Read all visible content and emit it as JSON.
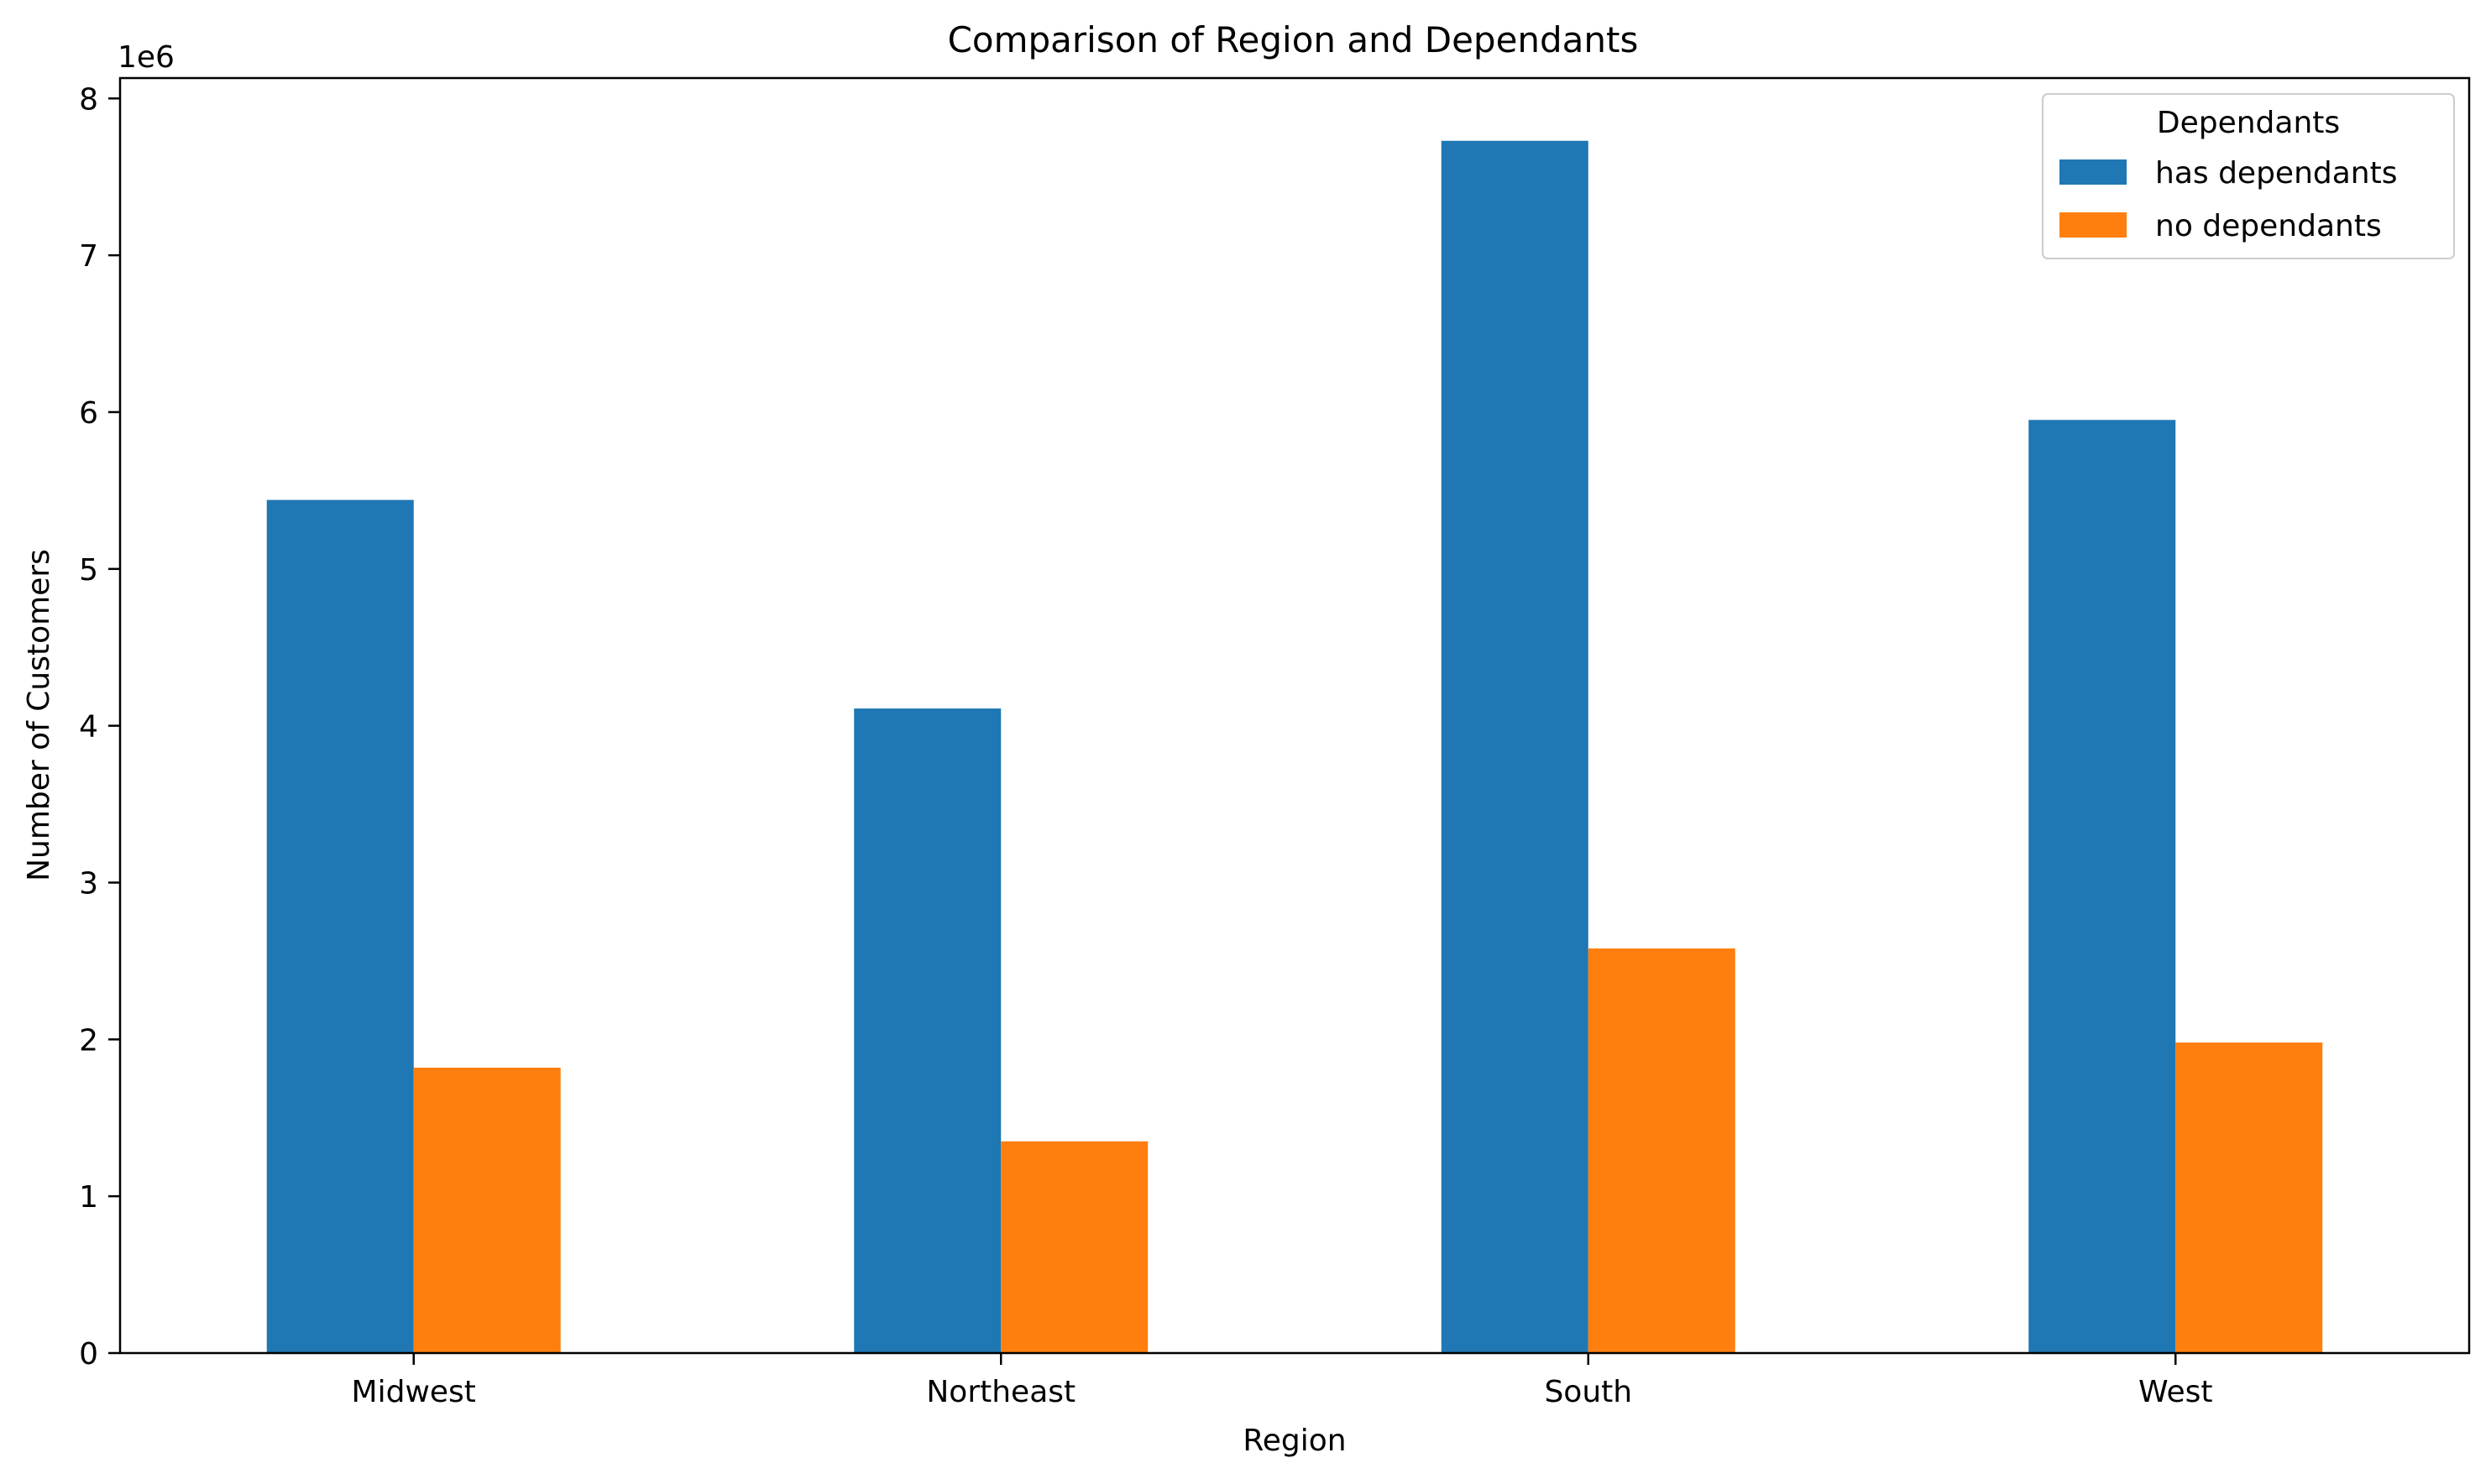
{
  "chart_data": {
    "type": "bar",
    "title": "Comparison of Region and Dependants",
    "xlabel": "Region",
    "ylabel": "Number of Customers",
    "y_offset_label": "1e6",
    "categories": [
      "Midwest",
      "Northeast",
      "South",
      "West"
    ],
    "series": [
      {
        "name": "has dependants",
        "color": "#1f77b4",
        "values": [
          5440000,
          4110000,
          7730000,
          5950000
        ]
      },
      {
        "name": "no dependants",
        "color": "#ff7f0e",
        "values": [
          1820000,
          1350000,
          2580000,
          1980000
        ]
      }
    ],
    "ylim": [
      0,
      8130000
    ],
    "yticks": [
      0,
      1000000,
      2000000,
      3000000,
      4000000,
      5000000,
      6000000,
      7000000,
      8000000
    ],
    "ytick_labels": [
      "0",
      "1",
      "2",
      "3",
      "4",
      "5",
      "6",
      "7",
      "8"
    ],
    "legend": {
      "title": "Dependants",
      "placement": "top-right"
    },
    "grid": false
  }
}
